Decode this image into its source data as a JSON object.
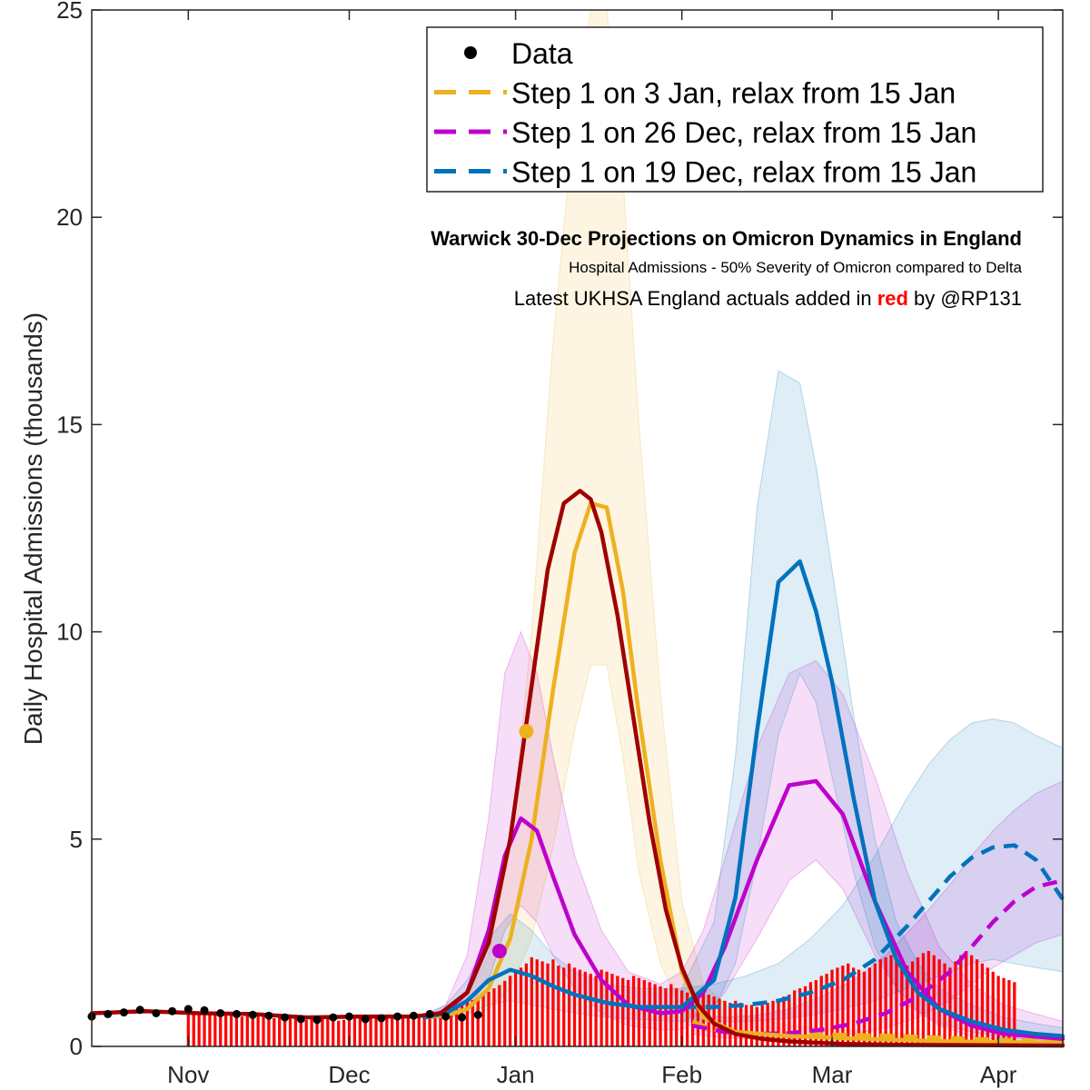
{
  "chart_data": {
    "type": "line",
    "title": "Warwick 30-Dec Projections on Omicron Dynamics in England",
    "subtitle": "Hospital Admissions - 50% Severity of Omicron compared to Delta",
    "note": {
      "prefix": "Latest UKHSA England actuals added in ",
      "highlight": "red",
      "suffix": " by @RP131"
    },
    "ylabel": "Daily Hospital Admissions (thousands)",
    "xlabel": "",
    "ylim": [
      0,
      25
    ],
    "yticks": [
      "0",
      "5",
      "10",
      "15",
      "20",
      "25"
    ],
    "yticks_values": [
      0,
      5,
      10,
      15,
      20,
      25
    ],
    "x_domain_days": [
      0,
      181
    ],
    "x_domain_start": "2021-10-14",
    "xticks": [
      {
        "label": "Nov",
        "day": 18
      },
      {
        "label": "Dec",
        "day": 48
      },
      {
        "label": "Jan",
        "day": 79
      },
      {
        "label": "Feb",
        "day": 110
      },
      {
        "label": "Mar",
        "day": 138
      },
      {
        "label": "Apr",
        "day": 169
      }
    ],
    "legend": {
      "placement": "top-right",
      "entries": [
        {
          "label": "Data",
          "marker": "dot",
          "color": "#000000"
        },
        {
          "label": "Step 1 on 3 Jan, relax from 15 Jan",
          "marker": "dashed",
          "color": "#EDB120"
        },
        {
          "label": "Step 1 on 26 Dec, relax from 15 Jan",
          "marker": "dashed",
          "color": "#BE00CC"
        },
        {
          "label": "Step 1 on 19 Dec, relax from 15 Jan",
          "marker": "dashed",
          "color": "#0072BD"
        }
      ]
    },
    "series": [
      {
        "name": "Data",
        "kind": "observed-dots",
        "color": "#000000",
        "x": [
          0,
          3,
          6,
          9,
          12,
          15,
          18,
          21,
          24,
          27,
          30,
          33,
          36,
          39,
          42,
          45,
          48,
          51,
          54,
          57,
          60,
          63,
          66,
          69,
          72
        ],
        "y": [
          0.72,
          0.78,
          0.82,
          0.88,
          0.8,
          0.85,
          0.9,
          0.87,
          0.8,
          0.78,
          0.76,
          0.74,
          0.7,
          0.66,
          0.64,
          0.7,
          0.72,
          0.66,
          0.68,
          0.72,
          0.74,
          0.78,
          0.72,
          0.7,
          0.76
        ]
      },
      {
        "name": "Step 1 on 3 Jan, relax from 15 Jan",
        "kind": "solid",
        "color": "#EDB120",
        "x": [
          62,
          66,
          70,
          74,
          78,
          82,
          86,
          90,
          93,
          96,
          99,
          102,
          106,
          110,
          114,
          120,
          130,
          140,
          160,
          181
        ],
        "y": [
          0.7,
          0.75,
          0.9,
          1.4,
          2.6,
          5.0,
          8.6,
          11.9,
          13.1,
          13.0,
          11.0,
          8.0,
          4.5,
          1.8,
          0.7,
          0.35,
          0.25,
          0.2,
          0.12,
          0.08
        ],
        "band_upper": [
          0.75,
          0.85,
          1.2,
          2.2,
          4.8,
          10.0,
          17.0,
          22.5,
          25.0,
          25.0,
          21.0,
          15.0,
          8.5,
          3.5,
          1.5,
          0.8,
          0.5,
          0.4,
          0.25,
          0.15
        ],
        "band_lower": [
          0.65,
          0.7,
          0.75,
          0.9,
          1.4,
          2.6,
          4.8,
          7.6,
          9.2,
          9.2,
          7.0,
          4.2,
          2.0,
          0.9,
          0.4,
          0.2,
          0.1,
          0.05,
          0.03,
          0.02
        ]
      },
      {
        "name": "Step 1 on 26 Dec, relax from 15 Jan",
        "kind": "solid",
        "color": "#BE00CC",
        "x": [
          62,
          66,
          70,
          74,
          77,
          80,
          83,
          86,
          90,
          95,
          100,
          106,
          110,
          114,
          118,
          124,
          130,
          135,
          140,
          146,
          152,
          158,
          164,
          170,
          181
        ],
        "y": [
          0.7,
          0.85,
          1.3,
          2.8,
          4.6,
          5.5,
          5.2,
          4.1,
          2.7,
          1.6,
          1.0,
          0.8,
          0.85,
          1.3,
          2.4,
          4.5,
          6.3,
          6.4,
          5.6,
          3.5,
          1.8,
          0.9,
          0.5,
          0.3,
          0.18
        ],
        "band_upper": [
          0.75,
          1.0,
          2.2,
          5.5,
          9.0,
          10.0,
          9.0,
          7.0,
          4.6,
          2.8,
          1.8,
          1.5,
          1.8,
          2.8,
          4.5,
          7.2,
          9.0,
          9.3,
          8.5,
          6.5,
          4.2,
          2.4,
          1.5,
          1.0,
          0.6
        ],
        "band_lower": [
          0.65,
          0.75,
          0.9,
          1.6,
          2.8,
          3.4,
          3.0,
          2.2,
          1.4,
          0.8,
          0.5,
          0.4,
          0.4,
          0.7,
          1.3,
          2.6,
          4.0,
          4.5,
          3.8,
          2.2,
          1.0,
          0.5,
          0.25,
          0.15,
          0.08
        ]
      },
      {
        "name": "Step 1 on 19 Dec, relax from 15 Jan",
        "kind": "solid",
        "color": "#0072BD",
        "x": [
          62,
          66,
          70,
          74,
          78,
          82,
          86,
          90,
          96,
          102,
          110,
          116,
          120,
          124,
          128,
          132,
          135,
          138,
          142,
          146,
          150,
          154,
          158,
          164,
          170,
          176,
          181
        ],
        "y": [
          0.7,
          0.8,
          1.1,
          1.6,
          1.85,
          1.7,
          1.45,
          1.25,
          1.05,
          0.95,
          0.95,
          1.6,
          3.6,
          7.6,
          11.2,
          11.7,
          10.5,
          8.8,
          6.0,
          3.5,
          2.1,
          1.3,
          0.9,
          0.6,
          0.4,
          0.3,
          0.25
        ],
        "band_upper": [
          0.75,
          1.0,
          1.6,
          2.6,
          3.2,
          2.8,
          2.2,
          1.8,
          1.5,
          1.4,
          1.4,
          3.0,
          7.0,
          13.0,
          16.3,
          16.0,
          14.0,
          11.5,
          8.0,
          5.0,
          3.0,
          2.0,
          1.4,
          1.0,
          0.7,
          0.55,
          0.45
        ],
        "band_lower": [
          0.65,
          0.7,
          0.8,
          1.0,
          1.1,
          1.0,
          0.9,
          0.8,
          0.7,
          0.65,
          0.6,
          0.9,
          2.0,
          4.5,
          7.5,
          9.0,
          8.3,
          6.5,
          4.2,
          2.4,
          1.4,
          0.85,
          0.55,
          0.35,
          0.22,
          0.16,
          0.12
        ]
      },
      {
        "name": "Step 1 on 3 Jan, relax from 15 Jan",
        "kind": "dashed-relax",
        "color": "#EDB120",
        "x": [
          112,
          116,
          120,
          126,
          132,
          140,
          150,
          160,
          170,
          181
        ],
        "y": [
          0.6,
          0.4,
          0.32,
          0.3,
          0.3,
          0.28,
          0.25,
          0.2,
          0.16,
          0.12
        ]
      },
      {
        "name": "Step 1 on 26 Dec, relax from 15 Jan",
        "kind": "dashed-relax",
        "color": "#BE00CC",
        "x": [
          112,
          118,
          124,
          130,
          136,
          142,
          148,
          154,
          160,
          164,
          168,
          172,
          176,
          181
        ],
        "y": [
          0.5,
          0.35,
          0.3,
          0.32,
          0.4,
          0.55,
          0.8,
          1.2,
          1.8,
          2.4,
          3.0,
          3.5,
          3.85,
          4.0
        ],
        "band_upper": [
          0.8,
          0.7,
          0.75,
          0.9,
          1.2,
          1.6,
          2.2,
          3.0,
          3.9,
          4.6,
          5.2,
          5.7,
          6.1,
          6.4
        ],
        "band_lower": [
          0.3,
          0.2,
          0.18,
          0.18,
          0.22,
          0.3,
          0.45,
          0.7,
          1.1,
          1.5,
          1.9,
          2.2,
          2.5,
          2.7
        ]
      },
      {
        "name": "Step 1 on 19 Dec, relax from 15 Jan",
        "kind": "dashed-relax",
        "color": "#0072BD",
        "x": [
          110,
          116,
          122,
          128,
          134,
          140,
          146,
          152,
          156,
          160,
          164,
          168,
          172,
          176,
          181
        ],
        "y": [
          0.95,
          0.95,
          1.0,
          1.1,
          1.3,
          1.6,
          2.1,
          2.9,
          3.5,
          4.1,
          4.55,
          4.8,
          4.85,
          4.5,
          3.55
        ],
        "band_upper": [
          1.4,
          1.5,
          1.7,
          2.0,
          2.6,
          3.4,
          4.6,
          6.0,
          6.8,
          7.4,
          7.8,
          7.9,
          7.8,
          7.5,
          7.2
        ],
        "band_lower": [
          0.6,
          0.6,
          0.6,
          0.65,
          0.75,
          0.9,
          1.1,
          1.4,
          1.6,
          1.8,
          2.0,
          2.1,
          2.0,
          1.9,
          1.8
        ]
      },
      {
        "name": "UKHSA England actuals",
        "kind": "fit",
        "color": "#A00000",
        "x": [
          0,
          10,
          20,
          30,
          40,
          50,
          60,
          65,
          70,
          74,
          78,
          82,
          85,
          88,
          91,
          93,
          95,
          98,
          101,
          104,
          107,
          110,
          113,
          116,
          120,
          125,
          130,
          140,
          150,
          181
        ],
        "y": [
          0.8,
          0.85,
          0.8,
          0.78,
          0.7,
          0.72,
          0.72,
          0.8,
          1.3,
          2.5,
          5.0,
          8.7,
          11.5,
          13.1,
          13.4,
          13.2,
          12.4,
          10.4,
          7.9,
          5.4,
          3.3,
          1.9,
          1.0,
          0.55,
          0.3,
          0.18,
          0.12,
          0.06,
          0.04,
          0.02
        ]
      }
    ],
    "markers": [
      {
        "x": 76,
        "y": 2.3,
        "color": "#BE00CC"
      },
      {
        "x": 81,
        "y": 7.6,
        "color": "#EDB120"
      }
    ],
    "bars": {
      "name": "UKHSA England actuals",
      "color": "#FF0000",
      "day_start": 18,
      "values": [
        0.84,
        0.8,
        0.78,
        0.77,
        0.76,
        0.8,
        0.82,
        0.79,
        0.75,
        0.73,
        0.72,
        0.74,
        0.76,
        0.78,
        0.74,
        0.7,
        0.68,
        0.7,
        0.72,
        0.74,
        0.69,
        0.66,
        0.64,
        0.66,
        0.68,
        0.7,
        0.66,
        0.64,
        0.62,
        0.64,
        0.66,
        0.68,
        0.7,
        0.72,
        0.7,
        0.68,
        0.66,
        0.7,
        0.74,
        0.76,
        0.74,
        0.72,
        0.7,
        0.74,
        0.78,
        0.8,
        0.82,
        0.84,
        0.86,
        0.9,
        0.96,
        1.0,
        1.06,
        1.12,
        1.18,
        1.25,
        1.32,
        1.4,
        1.48,
        1.58,
        1.7,
        1.8,
        1.9,
        2.0,
        2.15,
        2.1,
        2.05,
        2.0,
        2.1,
        1.95,
        1.9,
        2.0,
        1.9,
        1.85,
        1.8,
        1.75,
        1.7,
        1.85,
        1.8,
        1.75,
        1.7,
        1.65,
        1.6,
        1.7,
        1.65,
        1.6,
        1.55,
        1.5,
        1.45,
        1.4,
        1.5,
        1.4,
        1.35,
        1.3,
        1.25,
        1.2,
        1.3,
        1.25,
        1.2,
        1.15,
        1.1,
        1.05,
        1.1,
        1.05,
        1.0,
        1.0,
        0.95,
        1.0,
        1.05,
        1.1,
        1.15,
        1.2,
        1.25,
        1.35,
        1.4,
        1.45,
        1.55,
        1.6,
        1.7,
        1.75,
        1.85,
        1.9,
        1.95,
        2.0,
        1.9,
        1.85,
        1.8,
        1.9,
        2.0,
        2.1,
        2.15,
        2.2,
        2.1,
        2.0,
        1.95,
        2.05,
        2.15,
        2.25,
        2.3,
        2.2,
        2.1,
        2.0,
        1.9,
        2.05,
        2.2,
        2.3,
        2.2,
        2.1,
        2.0,
        1.9,
        1.8,
        1.7,
        1.65,
        1.6,
        1.55
      ]
    }
  }
}
